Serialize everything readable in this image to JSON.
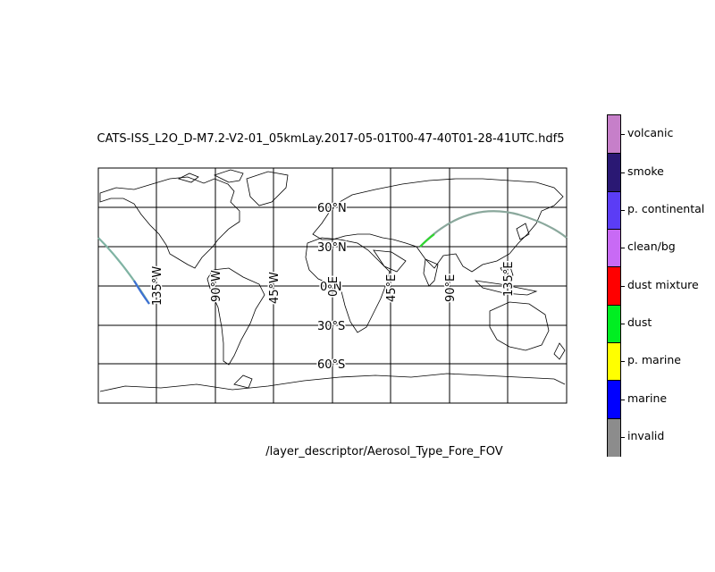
{
  "title": "CATS-ISS_L2O_D-M7.2-V2-01_05kmLay.2017-05-01T00-47-40T01-28-41UTC.hdf5",
  "subtitle": "/layer_descriptor/Aerosol_Type_Fore_FOV",
  "map": {
    "projection": "plate carree",
    "lat_labels": [
      "60°N",
      "30°N",
      "0°N",
      "30°S",
      "60°S"
    ],
    "lon_labels": [
      "135°W",
      "90°W",
      "45°W",
      "0°E",
      "45°E",
      "90°E",
      "135°E"
    ],
    "track_colors": [
      "#7fb3a3",
      "#888888",
      "#3b6fd4"
    ]
  },
  "colorbar": {
    "categories": [
      {
        "label": "volcanic",
        "color": "#c67fc9"
      },
      {
        "label": "smoke",
        "color": "#2a1873"
      },
      {
        "label": "p. continental",
        "color": "#5b3df5"
      },
      {
        "label": "clean/bg",
        "color": "#c86af5"
      },
      {
        "label": "dust mixture",
        "color": "#ff0000"
      },
      {
        "label": "dust",
        "color": "#00ee22"
      },
      {
        "label": "p. marine",
        "color": "#ffff00"
      },
      {
        "label": "marine",
        "color": "#0000ff"
      },
      {
        "label": "invalid",
        "color": "#8c8c8c"
      }
    ]
  }
}
